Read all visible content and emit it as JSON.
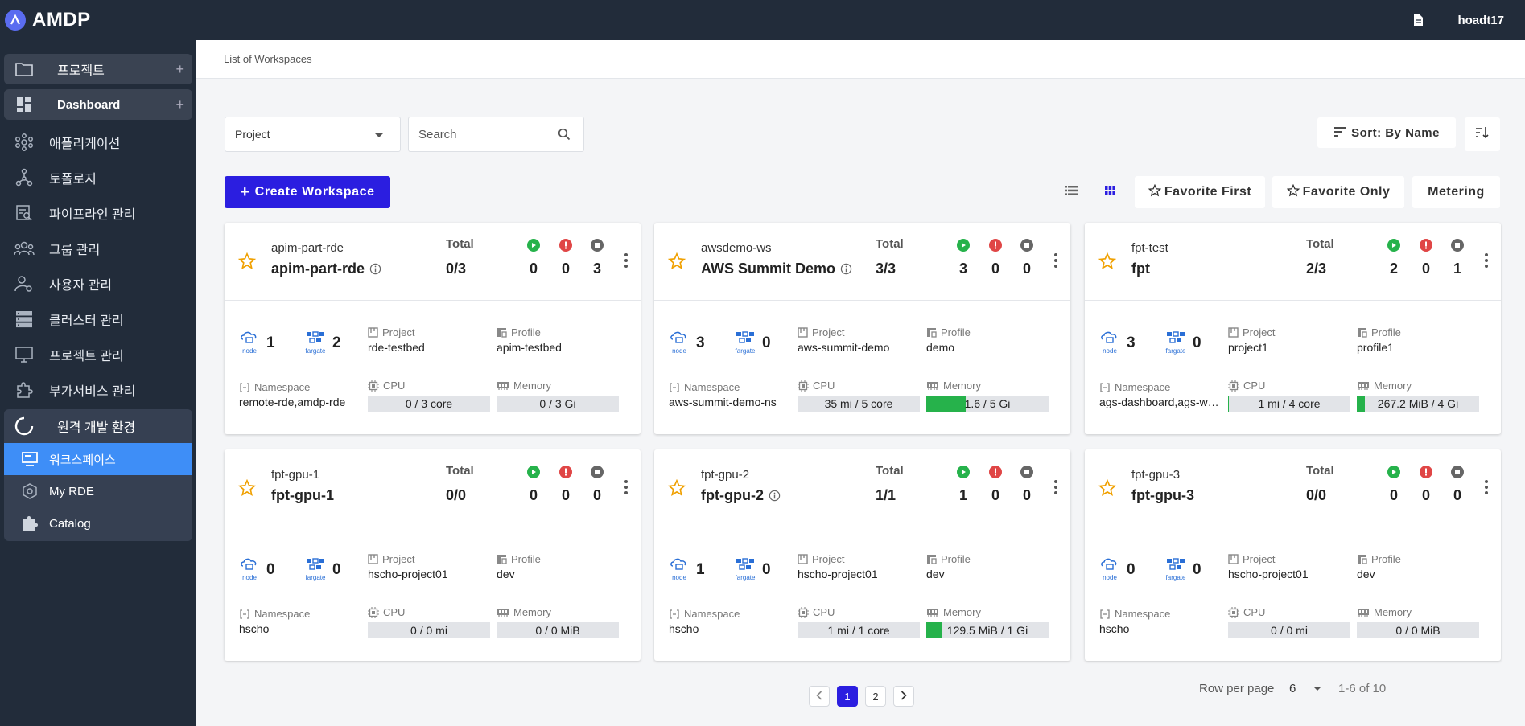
{
  "app": {
    "name": "AMDP",
    "username": "hoadt17"
  },
  "sidebar": {
    "groups": [
      {
        "label": "프로젝트",
        "icon": "folder-icon"
      },
      {
        "label": "Dashboard",
        "icon": "dashboard-icon"
      }
    ],
    "items": [
      {
        "label": "애플리케이션",
        "icon": "applications-icon"
      },
      {
        "label": "토폴로지",
        "icon": "topology-icon"
      },
      {
        "label": "파이프라인 관리",
        "icon": "pipeline-icon"
      },
      {
        "label": "그룹 관리",
        "icon": "group-icon"
      },
      {
        "label": "사용자 관리",
        "icon": "user-settings-icon"
      },
      {
        "label": "클러스터 관리",
        "icon": "cluster-icon"
      },
      {
        "label": "프로젝트 관리",
        "icon": "project-monitor-icon"
      },
      {
        "label": "부가서비스 관리",
        "icon": "extension-icon"
      }
    ],
    "rde": {
      "label": "원격 개발 환경",
      "children": [
        {
          "label": "워크스페이스",
          "icon": "workspace-icon"
        },
        {
          "label": "My RDE",
          "icon": "my-rde-icon"
        },
        {
          "label": "Catalog",
          "icon": "puzzle-icon"
        }
      ]
    }
  },
  "breadcrumb": "List of Workspaces",
  "filters": {
    "project_select": "Project",
    "search_placeholder": "Search",
    "sort_label": "Sort: By Name"
  },
  "toolbar": {
    "create": "Create Workspace",
    "favorite_first": "Favorite First",
    "favorite_only": "Favorite Only",
    "metering": "Metering"
  },
  "labels": {
    "total": "Total",
    "node": "node",
    "fargate": "fargate",
    "project": "Project",
    "profile": "Profile",
    "namespace": "Namespace",
    "cpu": "CPU",
    "memory": "Memory"
  },
  "colors": {
    "running": "#26b24b",
    "error": "#e04646",
    "stopped": "#666666",
    "primary": "#2b1ee0",
    "active_nav": "#3e8ef7"
  },
  "workspaces": [
    {
      "sub": "apim-part-rde",
      "name": "apim-part-rde",
      "info": true,
      "total": "0/3",
      "running": "0",
      "error": "0",
      "stopped": "3",
      "node": "1",
      "fargate": "2",
      "project": "rde-testbed",
      "profile": "apim-testbed",
      "namespace": "remote-rde,amdp-rde",
      "cpu": "0 / 3 core",
      "cpu_usage": 0,
      "memory": "0 / 3 Gi",
      "memory_usage": 0
    },
    {
      "sub": "awsdemo-ws",
      "name": "AWS Summit Demo",
      "info": true,
      "total": "3/3",
      "running": "3",
      "error": "0",
      "stopped": "0",
      "node": "3",
      "fargate": "0",
      "project": "aws-summit-demo",
      "profile": "demo",
      "namespace": "aws-summit-demo-ns",
      "cpu": "35 mi / 5 core",
      "cpu_usage": 0.007,
      "memory": "1.6 / 5 Gi",
      "memory_usage": 0.32
    },
    {
      "sub": "fpt-test",
      "name": "fpt",
      "info": false,
      "total": "2/3",
      "running": "2",
      "error": "0",
      "stopped": "1",
      "node": "3",
      "fargate": "0",
      "project": "project1",
      "profile": "profile1",
      "namespace": "ags-dashboard,ags-we...",
      "cpu": "1 mi / 4 core",
      "cpu_usage": 0.0003,
      "memory": "267.2 MiB / 4 Gi",
      "memory_usage": 0.065
    },
    {
      "sub": "fpt-gpu-1",
      "name": "fpt-gpu-1",
      "info": false,
      "total": "0/0",
      "running": "0",
      "error": "0",
      "stopped": "0",
      "node": "0",
      "fargate": "0",
      "project": "hscho-project01",
      "profile": "dev",
      "namespace": "hscho",
      "cpu": "0 / 0 mi",
      "cpu_usage": 0,
      "memory": "0 / 0 MiB",
      "memory_usage": 0
    },
    {
      "sub": "fpt-gpu-2",
      "name": "fpt-gpu-2",
      "info": true,
      "total": "1/1",
      "running": "1",
      "error": "0",
      "stopped": "0",
      "node": "1",
      "fargate": "0",
      "project": "hscho-project01",
      "profile": "dev",
      "namespace": "hscho",
      "cpu": "1 mi / 1 core",
      "cpu_usage": 0.001,
      "memory": "129.5 MiB / 1 Gi",
      "memory_usage": 0.126
    },
    {
      "sub": "fpt-gpu-3",
      "name": "fpt-gpu-3",
      "info": false,
      "total": "0/0",
      "running": "0",
      "error": "0",
      "stopped": "0",
      "node": "0",
      "fargate": "0",
      "project": "hscho-project01",
      "profile": "dev",
      "namespace": "hscho",
      "cpu": "0 / 0 mi",
      "cpu_usage": 0,
      "memory": "0 / 0 MiB",
      "memory_usage": 0
    }
  ],
  "pagination": {
    "pages": [
      "1",
      "2"
    ],
    "current": "1",
    "rows_label": "Row per page",
    "rows_value": "6",
    "range": "1-6 of 10"
  }
}
